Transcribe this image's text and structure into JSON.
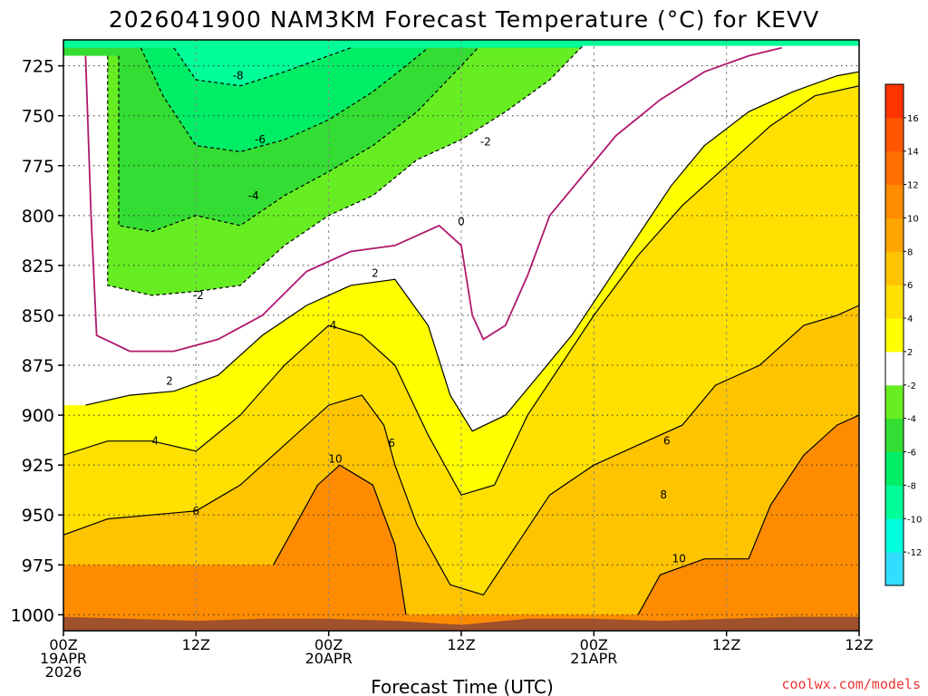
{
  "chart_data": {
    "type": "heatmap",
    "title": "2026041900 NAM3KM Forecast Temperature (°C) for KEVV",
    "xlabel": "Forecast Time (UTC)",
    "ylabel": "",
    "credit": "coolwx.com/models",
    "y_axis": {
      "unit": "hPa",
      "ticks": [
        725,
        750,
        775,
        800,
        825,
        850,
        875,
        900,
        925,
        950,
        975,
        1000
      ],
      "ylim": [
        1008,
        712
      ]
    },
    "x_axis": {
      "unit": "forecast hours",
      "xlim": [
        0,
        72
      ],
      "ticks": [
        {
          "hour": 0,
          "lines": [
            "00Z",
            "19APR",
            "2026"
          ]
        },
        {
          "hour": 12,
          "lines": [
            "12Z"
          ]
        },
        {
          "hour": 24,
          "lines": [
            "00Z",
            "20APR"
          ]
        },
        {
          "hour": 36,
          "lines": [
            "12Z"
          ]
        },
        {
          "hour": 48,
          "lines": [
            "00Z",
            "21APR"
          ]
        },
        {
          "hour": 60,
          "lines": [
            "12Z"
          ]
        }
      ]
    },
    "colorbar": {
      "levels": [
        -14,
        -12,
        -10,
        -8,
        -6,
        -4,
        -2,
        2,
        4,
        6,
        8,
        10,
        12,
        14,
        16,
        18
      ],
      "labels": [
        "-12",
        "-10",
        "-8",
        "-6",
        "-4",
        "-2",
        "2",
        "4",
        "6",
        "8",
        "10",
        "12",
        "14",
        "16"
      ],
      "colors": [
        "#33ddff",
        "#00ffdd",
        "#00ff99",
        "#00ee66",
        "#33dd33",
        "#66ee22",
        "#ffffff",
        "#ffff00",
        "#ffe000",
        "#ffc400",
        "#ffa500",
        "#ff8c00",
        "#ff7000",
        "#ff5500",
        "#ff3300"
      ]
    },
    "contour_labels": [
      {
        "text": "-8",
        "hour": 15.8,
        "p": 730
      },
      {
        "text": "-6",
        "hour": 17.8,
        "p": 762
      },
      {
        "text": "-4",
        "hour": 17.2,
        "p": 790
      },
      {
        "text": "-2",
        "hour": 12.2,
        "p": 840
      },
      {
        "text": "-2",
        "hour": 38.2,
        "p": 763
      },
      {
        "text": "0",
        "hour": 36.0,
        "p": 803
      },
      {
        "text": "2",
        "hour": 9.6,
        "p": 883
      },
      {
        "text": "2",
        "hour": 28.2,
        "p": 829
      },
      {
        "text": "4",
        "hour": 8.3,
        "p": 913
      },
      {
        "text": "4",
        "hour": 24.4,
        "p": 855
      },
      {
        "text": "6",
        "hour": 12.0,
        "p": 948
      },
      {
        "text": "6",
        "hour": 29.7,
        "p": 914
      },
      {
        "text": "6",
        "hour": 54.6,
        "p": 913
      },
      {
        "text": "8",
        "hour": 54.3,
        "p": 940
      },
      {
        "text": "10",
        "hour": 24.6,
        "p": 922
      },
      {
        "text": "10",
        "hour": 55.7,
        "p": 972
      }
    ],
    "surface_pressure": [
      {
        "hour": 0,
        "p": 1001
      },
      {
        "hour": 6,
        "p": 1002
      },
      {
        "hour": 12,
        "p": 1003
      },
      {
        "hour": 18,
        "p": 1002
      },
      {
        "hour": 24,
        "p": 1002
      },
      {
        "hour": 30,
        "p": 1003
      },
      {
        "hour": 36,
        "p": 1005
      },
      {
        "hour": 42,
        "p": 1002
      },
      {
        "hour": 48,
        "p": 1002
      },
      {
        "hour": 54,
        "p": 1003
      },
      {
        "hour": 60,
        "p": 1002
      },
      {
        "hour": 66,
        "p": 1001
      },
      {
        "hour": 72,
        "p": 1001
      }
    ],
    "temperature_contours": [
      {
        "level": 10,
        "points": [
          {
            "hour": 19,
            "p": 975
          },
          {
            "hour": 21,
            "p": 955
          },
          {
            "hour": 23,
            "p": 935
          },
          {
            "hour": 25,
            "p": 925
          },
          {
            "hour": 28,
            "p": 935
          },
          {
            "hour": 30,
            "p": 965
          },
          {
            "hour": 31,
            "p": 1000
          }
        ]
      },
      {
        "level": 10,
        "points": [
          {
            "hour": 52,
            "p": 1000
          },
          {
            "hour": 54,
            "p": 980
          },
          {
            "hour": 58,
            "p": 972
          },
          {
            "hour": 62,
            "p": 972
          },
          {
            "hour": 64,
            "p": 945
          },
          {
            "hour": 67,
            "p": 920
          },
          {
            "hour": 70,
            "p": 905
          },
          {
            "hour": 72,
            "p": 900
          }
        ]
      },
      {
        "level": 6,
        "points": [
          {
            "hour": 0,
            "p": 960
          },
          {
            "hour": 4,
            "p": 952
          },
          {
            "hour": 8,
            "p": 950
          },
          {
            "hour": 12,
            "p": 948
          },
          {
            "hour": 16,
            "p": 935
          },
          {
            "hour": 20,
            "p": 915
          },
          {
            "hour": 24,
            "p": 895
          },
          {
            "hour": 27,
            "p": 890
          },
          {
            "hour": 29,
            "p": 905
          },
          {
            "hour": 30,
            "p": 925
          },
          {
            "hour": 32,
            "p": 955
          },
          {
            "hour": 35,
            "p": 985
          },
          {
            "hour": 38,
            "p": 990
          },
          {
            "hour": 41,
            "p": 965
          },
          {
            "hour": 44,
            "p": 940
          },
          {
            "hour": 48,
            "p": 925
          },
          {
            "hour": 52,
            "p": 915
          },
          {
            "hour": 56,
            "p": 905
          },
          {
            "hour": 59,
            "p": 885
          },
          {
            "hour": 63,
            "p": 875
          },
          {
            "hour": 67,
            "p": 855
          },
          {
            "hour": 70,
            "p": 850
          },
          {
            "hour": 72,
            "p": 845
          }
        ]
      },
      {
        "level": 4,
        "points": [
          {
            "hour": 0,
            "p": 920
          },
          {
            "hour": 4,
            "p": 913
          },
          {
            "hour": 8,
            "p": 913
          },
          {
            "hour": 12,
            "p": 918
          },
          {
            "hour": 16,
            "p": 900
          },
          {
            "hour": 20,
            "p": 875
          },
          {
            "hour": 24,
            "p": 855
          },
          {
            "hour": 27,
            "p": 860
          },
          {
            "hour": 30,
            "p": 875
          },
          {
            "hour": 33,
            "p": 910
          },
          {
            "hour": 36,
            "p": 940
          },
          {
            "hour": 39,
            "p": 935
          },
          {
            "hour": 42,
            "p": 900
          },
          {
            "hour": 45,
            "p": 875
          },
          {
            "hour": 48,
            "p": 850
          },
          {
            "hour": 52,
            "p": 820
          },
          {
            "hour": 56,
            "p": 795
          },
          {
            "hour": 60,
            "p": 775
          },
          {
            "hour": 64,
            "p": 755
          },
          {
            "hour": 68,
            "p": 740
          },
          {
            "hour": 72,
            "p": 735
          }
        ]
      },
      {
        "level": 2,
        "points": [
          {
            "hour": 2,
            "p": 895
          },
          {
            "hour": 6,
            "p": 890
          },
          {
            "hour": 10,
            "p": 888
          },
          {
            "hour": 14,
            "p": 880
          },
          {
            "hour": 18,
            "p": 860
          },
          {
            "hour": 22,
            "p": 845
          },
          {
            "hour": 26,
            "p": 835
          },
          {
            "hour": 30,
            "p": 832
          },
          {
            "hour": 33,
            "p": 855
          },
          {
            "hour": 35,
            "p": 890
          },
          {
            "hour": 37,
            "p": 908
          },
          {
            "hour": 40,
            "p": 900
          },
          {
            "hour": 43,
            "p": 880
          },
          {
            "hour": 46,
            "p": 860
          },
          {
            "hour": 49,
            "p": 835
          },
          {
            "hour": 52,
            "p": 810
          },
          {
            "hour": 55,
            "p": 785
          },
          {
            "hour": 58,
            "p": 765
          },
          {
            "hour": 62,
            "p": 748
          },
          {
            "hour": 66,
            "p": 738
          },
          {
            "hour": 70,
            "p": 730
          },
          {
            "hour": 72,
            "p": 728
          }
        ]
      },
      {
        "level": 0,
        "points": [
          {
            "hour": 2,
            "p": 720
          },
          {
            "hour": 2.5,
            "p": 800
          },
          {
            "hour": 3,
            "p": 860
          },
          {
            "hour": 6,
            "p": 868
          },
          {
            "hour": 10,
            "p": 868
          },
          {
            "hour": 14,
            "p": 862
          },
          {
            "hour": 18,
            "p": 850
          },
          {
            "hour": 22,
            "p": 828
          },
          {
            "hour": 26,
            "p": 818
          },
          {
            "hour": 30,
            "p": 815
          },
          {
            "hour": 34,
            "p": 805
          },
          {
            "hour": 36,
            "p": 815
          },
          {
            "hour": 37,
            "p": 850
          },
          {
            "hour": 38,
            "p": 862
          },
          {
            "hour": 40,
            "p": 855
          },
          {
            "hour": 42,
            "p": 830
          },
          {
            "hour": 44,
            "p": 800
          },
          {
            "hour": 47,
            "p": 780
          },
          {
            "hour": 50,
            "p": 760
          },
          {
            "hour": 54,
            "p": 742
          },
          {
            "hour": 58,
            "p": 728
          },
          {
            "hour": 62,
            "p": 720
          },
          {
            "hour": 65,
            "p": 716
          }
        ]
      },
      {
        "level": -2,
        "points": [
          {
            "hour": 4,
            "p": 720
          },
          {
            "hour": 4,
            "p": 790
          },
          {
            "hour": 4,
            "p": 835
          },
          {
            "hour": 8,
            "p": 840
          },
          {
            "hour": 12,
            "p": 838
          },
          {
            "hour": 16,
            "p": 835
          },
          {
            "hour": 20,
            "p": 815
          },
          {
            "hour": 24,
            "p": 800
          },
          {
            "hour": 28,
            "p": 790
          },
          {
            "hour": 32,
            "p": 772
          },
          {
            "hour": 36,
            "p": 762
          },
          {
            "hour": 40,
            "p": 748
          },
          {
            "hour": 44,
            "p": 732
          },
          {
            "hour": 47,
            "p": 715
          }
        ]
      },
      {
        "level": -4,
        "points": [
          {
            "hour": 5,
            "p": 720
          },
          {
            "hour": 5,
            "p": 805
          },
          {
            "hour": 8,
            "p": 808
          },
          {
            "hour": 12,
            "p": 800
          },
          {
            "hour": 16,
            "p": 805
          },
          {
            "hour": 20,
            "p": 790
          },
          {
            "hour": 24,
            "p": 778
          },
          {
            "hour": 28,
            "p": 765
          },
          {
            "hour": 32,
            "p": 748
          },
          {
            "hour": 36,
            "p": 725
          },
          {
            "hour": 37.5,
            "p": 716
          }
        ]
      },
      {
        "level": -6,
        "points": [
          {
            "hour": 7,
            "p": 716
          },
          {
            "hour": 9,
            "p": 740
          },
          {
            "hour": 12,
            "p": 765
          },
          {
            "hour": 16,
            "p": 768
          },
          {
            "hour": 20,
            "p": 762
          },
          {
            "hour": 24,
            "p": 752
          },
          {
            "hour": 28,
            "p": 738
          },
          {
            "hour": 31,
            "p": 725
          },
          {
            "hour": 33,
            "p": 716
          }
        ]
      },
      {
        "level": -8,
        "points": [
          {
            "hour": 10,
            "p": 716
          },
          {
            "hour": 12,
            "p": 732
          },
          {
            "hour": 16,
            "p": 735
          },
          {
            "hour": 20,
            "p": 728
          },
          {
            "hour": 24,
            "p": 720
          },
          {
            "hour": 26,
            "p": 716
          }
        ]
      }
    ],
    "legend": "colorbar-right",
    "grid": true
  }
}
